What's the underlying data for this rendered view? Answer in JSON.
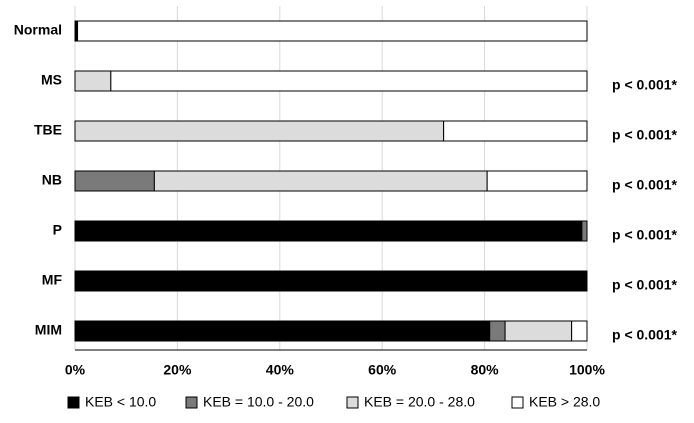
{
  "chart_data": {
    "type": "stacked_barh",
    "categories": [
      "Normal",
      "MS",
      "TBE",
      "NB",
      "P",
      "MF",
      "MIM"
    ],
    "series": [
      {
        "name": "KEB < 10.0",
        "color": "#000000",
        "values": [
          0.5,
          0,
          0,
          0,
          99,
          100,
          81
        ]
      },
      {
        "name": "KEB = 10.0 - 20.0",
        "color": "#7a7a7a",
        "values": [
          0,
          0,
          0,
          15.5,
          1,
          0,
          3
        ]
      },
      {
        "name": "KEB = 20.0 - 28.0",
        "color": "#dcdcdc",
        "values": [
          0,
          7,
          72,
          65,
          0,
          0,
          13
        ]
      },
      {
        "name": "KEB > 28.0",
        "color": "#ffffff",
        "values": [
          99.5,
          93,
          28,
          19.5,
          0,
          0,
          3
        ]
      }
    ],
    "annotations": [
      null,
      "p < 0.001*",
      "p < 0.001*",
      "p < 0.001*",
      "p < 0.001*",
      "p < 0.001*",
      "p < 0.001*"
    ],
    "xlim": [
      0,
      100
    ],
    "xticks": [
      {
        "value": 0,
        "label": "0%"
      },
      {
        "value": 20,
        "label": "20%"
      },
      {
        "value": 40,
        "label": "40%"
      },
      {
        "value": 60,
        "label": "60%"
      },
      {
        "value": 80,
        "label": "80%"
      },
      {
        "value": 100,
        "label": "100%"
      }
    ],
    "grid": true
  }
}
